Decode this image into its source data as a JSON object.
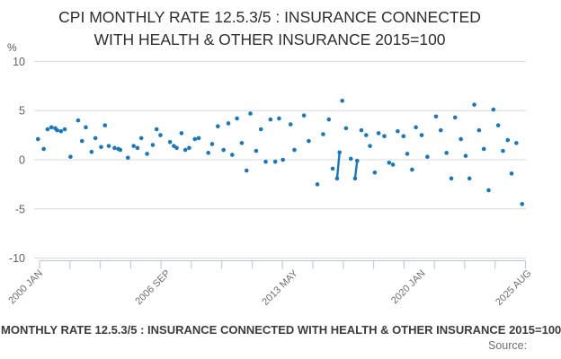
{
  "title": {
    "line1": "CPI MONTHLY RATE 12.5.3/5 : INSURANCE CONNECTED",
    "line2": "WITH HEALTH & OTHER INSURANCE 2015=100"
  },
  "footer": {
    "legend": "CPI MONTHLY RATE 12.5.3/5 : INSURANCE CONNECTED WITH HEALTH & OTHER INSURANCE 2015=100",
    "source_label": "Source:"
  },
  "colors": {
    "point": "#1778be",
    "grid": "#d9d9d9",
    "axis": "#c1ccd9",
    "y_label": "#626262",
    "x_label": "#6e6e6e",
    "unit_label": "#555555"
  },
  "chart_data": {
    "type": "scatter",
    "title": "CPI MONTHLY RATE 12.5.3/5 : INSURANCE CONNECTED WITH HEALTH & OTHER INSURANCE 2015=100",
    "xlabel": "",
    "ylabel": "%",
    "unit": "%",
    "ylim": [
      -10,
      10
    ],
    "yticks": [
      10,
      5,
      0,
      -5,
      -10
    ],
    "xlim": [
      2000.0,
      2025.7
    ],
    "grid": true,
    "minor_tick_count": 17,
    "xticks": [
      {
        "label": "2000 JAN",
        "year": 2000.04
      },
      {
        "label": "2006 SEP",
        "year": 2006.71
      },
      {
        "label": "2013 MAY",
        "year": 2013.37
      },
      {
        "label": "2020 JAN",
        "year": 2020.04
      },
      {
        "label": "2025 AUG",
        "year": 2025.58
      }
    ],
    "points": [
      [
        2000.2,
        2.1
      ],
      [
        2000.5,
        1.1
      ],
      [
        2000.7,
        3.1
      ],
      [
        2000.9,
        3.3
      ],
      [
        2001.1,
        3.2
      ],
      [
        2001.2,
        3.0
      ],
      [
        2001.4,
        2.9
      ],
      [
        2001.6,
        3.1
      ],
      [
        2001.9,
        0.3
      ],
      [
        2002.3,
        4.0
      ],
      [
        2002.5,
        1.9
      ],
      [
        2002.7,
        3.3
      ],
      [
        2003.0,
        0.8
      ],
      [
        2003.2,
        2.2
      ],
      [
        2003.5,
        1.3
      ],
      [
        2003.7,
        3.5
      ],
      [
        2003.9,
        1.4
      ],
      [
        2004.2,
        1.2
      ],
      [
        2004.4,
        1.1
      ],
      [
        2004.5,
        1.0
      ],
      [
        2004.9,
        0.2
      ],
      [
        2005.2,
        1.4
      ],
      [
        2005.4,
        1.2
      ],
      [
        2005.6,
        2.2
      ],
      [
        2005.9,
        0.6
      ],
      [
        2006.2,
        1.5
      ],
      [
        2006.4,
        3.1
      ],
      [
        2006.6,
        2.5
      ],
      [
        2007.1,
        1.8
      ],
      [
        2007.3,
        1.4
      ],
      [
        2007.45,
        1.2
      ],
      [
        2007.7,
        2.7
      ],
      [
        2007.9,
        1.0
      ],
      [
        2008.1,
        1.2
      ],
      [
        2008.4,
        2.1
      ],
      [
        2008.6,
        2.2
      ],
      [
        2009.1,
        0.7
      ],
      [
        2009.3,
        1.6
      ],
      [
        2009.6,
        3.4
      ],
      [
        2009.9,
        1.0
      ],
      [
        2010.15,
        3.7
      ],
      [
        2010.35,
        0.5
      ],
      [
        2010.6,
        4.2
      ],
      [
        2010.85,
        1.7
      ],
      [
        2011.1,
        -1.1
      ],
      [
        2011.3,
        4.7
      ],
      [
        2011.6,
        0.9
      ],
      [
        2011.85,
        3.1
      ],
      [
        2012.1,
        -0.2
      ],
      [
        2012.35,
        4.1
      ],
      [
        2012.6,
        -0.2
      ],
      [
        2012.8,
        4.2
      ],
      [
        2013.0,
        0.0
      ],
      [
        2013.4,
        3.6
      ],
      [
        2013.6,
        1.0
      ],
      [
        2014.1,
        4.5
      ],
      [
        2014.35,
        1.9
      ],
      [
        2014.8,
        -2.5
      ],
      [
        2015.1,
        2.6
      ],
      [
        2015.4,
        4.1
      ],
      [
        2015.6,
        -0.9
      ],
      [
        2016.1,
        6.0
      ],
      [
        2016.3,
        3.2
      ],
      [
        2016.55,
        0.1
      ],
      [
        2017.1,
        3.0
      ],
      [
        2017.35,
        2.5
      ],
      [
        2017.55,
        1.4
      ],
      [
        2017.8,
        -1.3
      ],
      [
        2018.0,
        2.7
      ],
      [
        2018.3,
        2.4
      ],
      [
        2018.55,
        -0.3
      ],
      [
        2018.75,
        -0.5
      ],
      [
        2019.0,
        2.9
      ],
      [
        2019.3,
        2.4
      ],
      [
        2019.5,
        0.6
      ],
      [
        2019.75,
        -1.0
      ],
      [
        2019.95,
        3.3
      ],
      [
        2020.25,
        2.5
      ],
      [
        2020.55,
        0.3
      ],
      [
        2021.0,
        4.4
      ],
      [
        2021.25,
        3.0
      ],
      [
        2021.55,
        0.7
      ],
      [
        2021.8,
        -1.9
      ],
      [
        2022.0,
        4.3
      ],
      [
        2022.3,
        2.1
      ],
      [
        2022.55,
        0.4
      ],
      [
        2022.75,
        -1.9
      ],
      [
        2023.0,
        5.6
      ],
      [
        2023.25,
        3.0
      ],
      [
        2023.5,
        1.1
      ],
      [
        2023.75,
        -3.1
      ],
      [
        2024.0,
        5.1
      ],
      [
        2024.25,
        3.5
      ],
      [
        2024.5,
        0.9
      ],
      [
        2024.75,
        2.0
      ],
      [
        2024.95,
        -1.4
      ],
      [
        2025.2,
        1.7
      ],
      [
        2025.5,
        -4.5
      ]
    ],
    "segments": [
      [
        2015.83,
        -1.9,
        2015.96,
        0.75
      ],
      [
        2016.77,
        -1.9,
        2016.88,
        -0.1
      ]
    ]
  }
}
